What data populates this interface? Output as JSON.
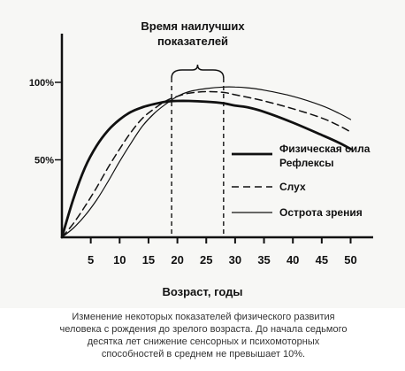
{
  "chart_data": {
    "type": "line",
    "highlight": {
      "label_line1": "Время наилучших",
      "label_line2": "показателей",
      "x_range": [
        19,
        28
      ]
    },
    "xlabel": "Возраст, годы",
    "ylabel": "",
    "x_ticks": [
      5,
      10,
      15,
      20,
      25,
      30,
      35,
      40,
      45,
      50
    ],
    "y_ticks": [
      {
        "value": 50,
        "label": "50%"
      },
      {
        "value": 100,
        "label": "100%"
      }
    ],
    "xlim": [
      0,
      51
    ],
    "ylim": [
      0,
      120
    ],
    "grid": false,
    "legend_position": "right",
    "series": [
      {
        "name": "Физическая сила Рефлексы",
        "name_line1": "Физическая сила",
        "name_line2": "Рефлексы",
        "style": "thick-solid",
        "x": [
          0,
          2,
          4,
          6,
          8,
          10,
          12,
          14,
          16,
          18,
          20,
          22,
          25,
          28,
          30,
          32,
          35,
          40,
          45,
          48,
          50
        ],
        "y": [
          0,
          25,
          45,
          59,
          69,
          76,
          81,
          84,
          86,
          87.5,
          88,
          88,
          87.5,
          86.5,
          85,
          84,
          81,
          74,
          66,
          61,
          57
        ]
      },
      {
        "name": "Слух",
        "style": "dashed",
        "x": [
          0,
          2,
          4,
          6,
          8,
          10,
          12,
          14,
          16,
          18,
          20,
          22,
          25,
          28,
          30,
          32,
          35,
          40,
          45,
          48,
          50
        ],
        "y": [
          0,
          9,
          20,
          32,
          45,
          57,
          68,
          77,
          83,
          88,
          91,
          93,
          94,
          93.5,
          92,
          90.5,
          88,
          83,
          77,
          72,
          68
        ]
      },
      {
        "name": "Острота зрения",
        "style": "thin-solid",
        "x": [
          0,
          2,
          4,
          6,
          8,
          10,
          12,
          14,
          16,
          18,
          20,
          22,
          25,
          28,
          30,
          32,
          35,
          40,
          45,
          48,
          50
        ],
        "y": [
          0,
          6,
          14,
          24,
          36,
          49,
          61,
          72,
          80,
          86,
          91,
          94,
          96,
          97,
          97,
          96.5,
          95,
          91,
          85,
          80,
          76
        ]
      }
    ]
  },
  "caption": [
    "Изменение некоторых показателей физического развития",
    "человека с рождения до зрелого возраста. До начала седьмого",
    "десятка лет снижение сенсорных и психомоторных",
    "способностей в среднем не превышает 10%."
  ]
}
